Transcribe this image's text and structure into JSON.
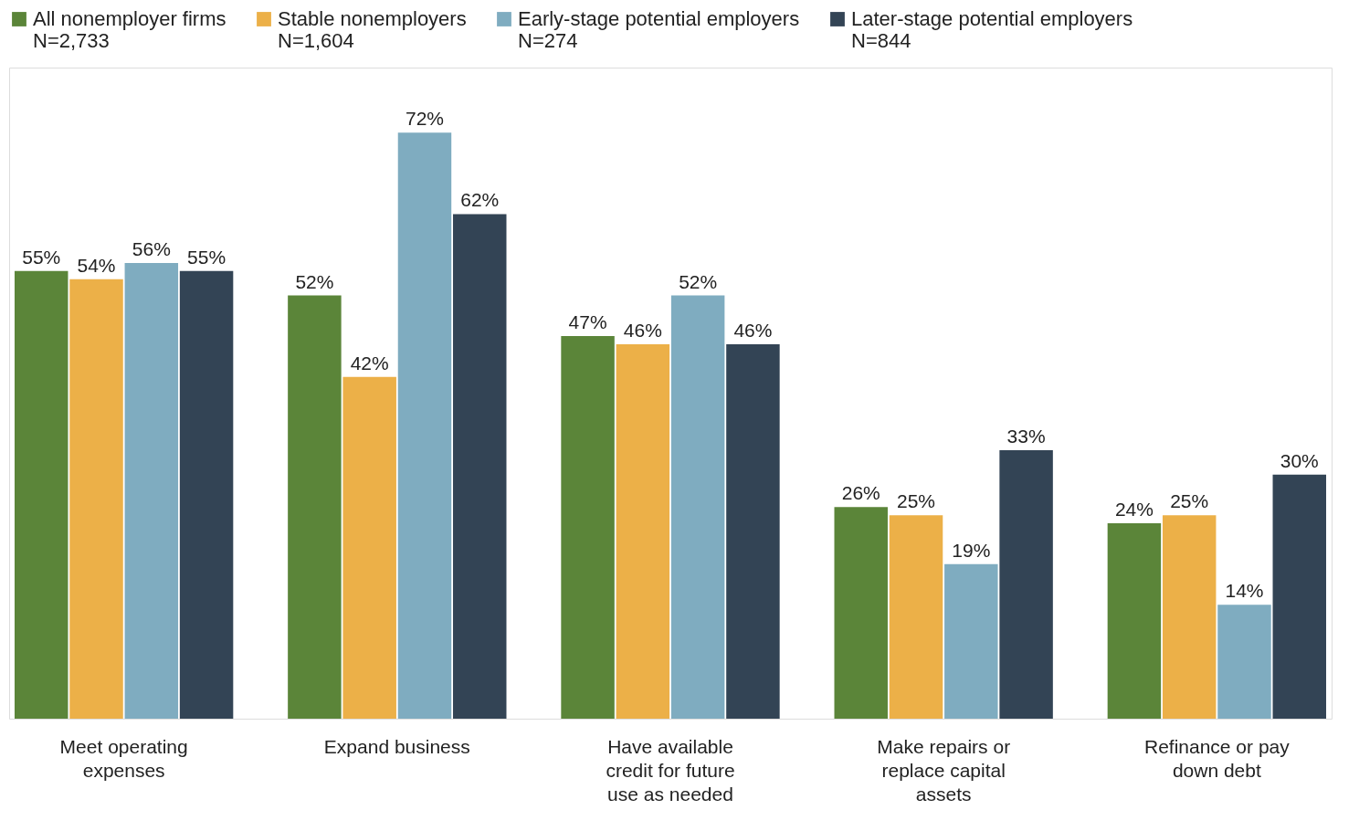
{
  "chart_data": {
    "type": "bar",
    "categories": [
      "Meet operating expenses",
      "Expand business",
      "Have available credit for future use as needed",
      "Make repairs or replace capital assets",
      "Refinance or pay down debt"
    ],
    "series": [
      {
        "name": "All nonemployer firms\nN=2,733",
        "color": "#5b8539",
        "values": [
          55,
          52,
          47,
          26,
          24
        ],
        "value_labels": [
          "55%",
          "52%",
          "47%",
          "26%",
          "24%"
        ]
      },
      {
        "name": "Stable nonemployers\nN=1,604",
        "color": "#ecb048",
        "values": [
          54,
          42,
          46,
          25,
          25
        ],
        "value_labels": [
          "54%",
          "42%",
          "46%",
          "25%",
          "25%"
        ]
      },
      {
        "name": "Early-stage potential employers\nN=274",
        "color": "#7facc0",
        "values": [
          56,
          72,
          52,
          19,
          14
        ],
        "value_labels": [
          "56%",
          "72%",
          "52%",
          "19%",
          "14%"
        ]
      },
      {
        "name": "Later-stage potential employers\nN=844",
        "color": "#334455",
        "values": [
          55,
          62,
          46,
          33,
          30
        ],
        "value_labels": [
          "55%",
          "62%",
          "46%",
          "33%",
          "30%"
        ]
      }
    ],
    "legend": "top",
    "tick_labels": "x"
  }
}
